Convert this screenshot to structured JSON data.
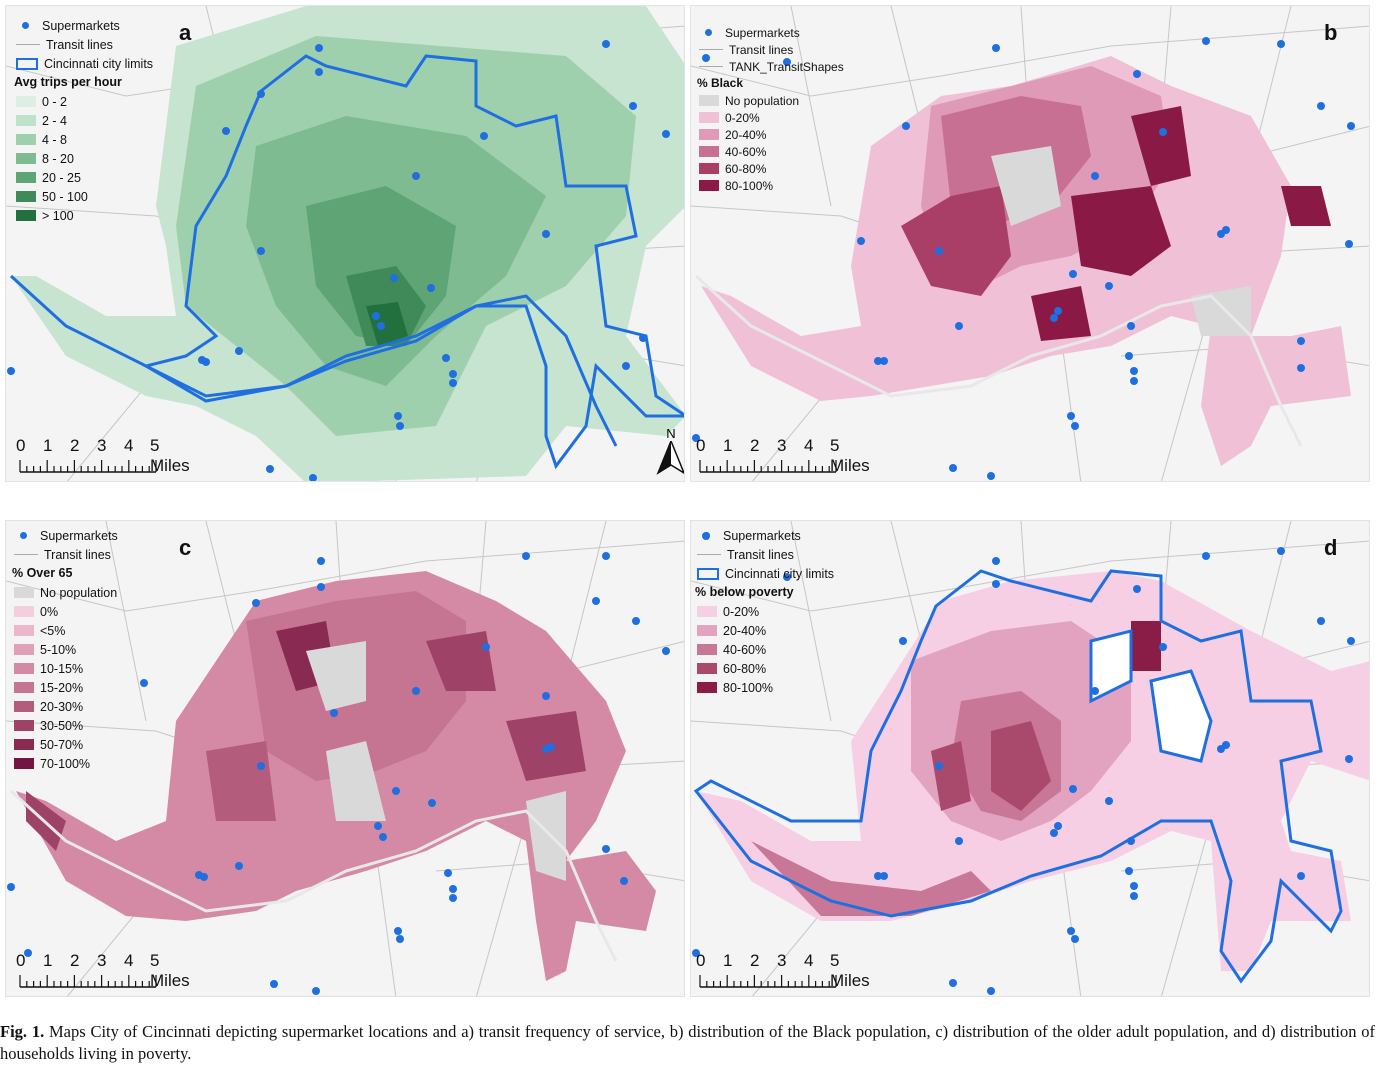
{
  "colors": {
    "supermarket": "#1f6fe0",
    "city_limits": "#1f6fe0",
    "transit": "#b5b5b5",
    "no_population": "#d9d9d9"
  },
  "scale_labels": [
    "0",
    "1",
    "2",
    "3",
    "4",
    "5 Miles"
  ],
  "north_label": "N",
  "panels": {
    "a": {
      "letter": "a",
      "legend": {
        "supermarkets": "Supermarkets",
        "transit": "Transit lines",
        "city_limits": "Cincinnati city limits",
        "title": "Avg trips per hour",
        "classes": [
          {
            "label": "0 - 2",
            "color": "#dcefe2"
          },
          {
            "label": "2 - 4",
            "color": "#bfe2ca"
          },
          {
            "label": "4 - 8",
            "color": "#9fd0ae"
          },
          {
            "label": "8 - 20",
            "color": "#7fbb91"
          },
          {
            "label": "20 - 25",
            "color": "#5ea474"
          },
          {
            "label": "50 - 100",
            "color": "#3f8a58"
          },
          {
            "label": "> 100",
            "color": "#23703f"
          }
        ]
      }
    },
    "b": {
      "letter": "b",
      "legend": {
        "supermarkets": "Supermarkets",
        "transit": "Transit lines",
        "tank": "TANK_TransitShapes",
        "title": "% Black",
        "classes": [
          {
            "label": "No population",
            "color": "#d9d9d9"
          },
          {
            "label": "0-20%",
            "color": "#f0c1d6"
          },
          {
            "label": "20-40%",
            "color": "#df9ab8"
          },
          {
            "label": "40-60%",
            "color": "#c86f94"
          },
          {
            "label": "60-80%",
            "color": "#a93e66"
          },
          {
            "label": "80-100%",
            "color": "#8a1a45"
          }
        ]
      }
    },
    "c": {
      "letter": "c",
      "legend": {
        "supermarkets": "Supermarkets",
        "transit": "Transit lines",
        "title": "% Over 65",
        "classes": [
          {
            "label": "No population",
            "color": "#d9d9d9"
          },
          {
            "label": "0%",
            "color": "#f3cfdd"
          },
          {
            "label": "<5%",
            "color": "#ebb7cb"
          },
          {
            "label": "5-10%",
            "color": "#e0a0b8"
          },
          {
            "label": "10-15%",
            "color": "#d48aa5"
          },
          {
            "label": "15-20%",
            "color": "#c57491"
          },
          {
            "label": "20-30%",
            "color": "#b35c7c"
          },
          {
            "label": "30-50%",
            "color": "#9e4267"
          },
          {
            "label": "50-70%",
            "color": "#892a52"
          },
          {
            "label": "70-100%",
            "color": "#741440"
          }
        ]
      }
    },
    "d": {
      "letter": "d",
      "legend": {
        "supermarkets": "Supermarkets",
        "transit": "Transit lines",
        "city_limits": "Cincinnati city limits",
        "title": "% below poverty",
        "classes": [
          {
            "label": "0-20%",
            "color": "#f6cfe5"
          },
          {
            "label": "20-40%",
            "color": "#e2a3c0"
          },
          {
            "label": "40-60%",
            "color": "#c97797"
          },
          {
            "label": "60-80%",
            "color": "#a94a6d"
          },
          {
            "label": "80-100%",
            "color": "#8a1c48"
          }
        ]
      }
    }
  },
  "caption": {
    "label": "Fig. 1.",
    "text": "Maps City of Cincinnati depicting supermarket locations and a) transit frequency of service, b) distribution of the Black population, c) distribution of the older adult population, and d) distribution of households living in poverty."
  }
}
